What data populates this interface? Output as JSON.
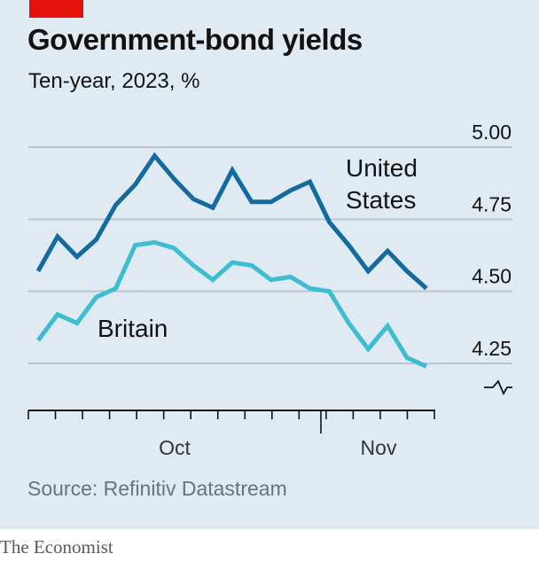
{
  "header": {
    "title": "Government-bond yields",
    "subtitle": "Ten-year, 2023, %"
  },
  "footer": {
    "source": "Source: Refinitiv Datastream",
    "brand": "The Economist"
  },
  "colors": {
    "background": "#e0eaf2",
    "accent": "#e3120b",
    "united_states": "#136a9e",
    "britain": "#3ebcd2",
    "gridline": "#b7c6d2",
    "text": "#121212"
  },
  "chart_data": {
    "type": "line",
    "y_scale": "linear",
    "ylim": [
      4.25,
      5.0
    ],
    "yticks": [
      "4.25",
      "4.50",
      "4.75",
      "5.00"
    ],
    "axis_break_below": true,
    "x_labels": [
      "Oct",
      "Nov"
    ],
    "x_tick_count": 16,
    "x_label_positions": [
      5.5,
      12.5
    ],
    "grid": true,
    "series": [
      {
        "name": "United States",
        "label_lines": [
          "United",
          "States"
        ],
        "color": "#136a9e",
        "values": [
          4.57,
          4.69,
          4.62,
          4.68,
          4.8,
          4.87,
          4.97,
          4.89,
          4.82,
          4.79,
          4.92,
          4.81,
          4.81,
          4.85,
          4.88,
          4.74,
          4.66,
          4.57,
          4.64,
          4.57,
          4.51
        ]
      },
      {
        "name": "Britain",
        "label_lines": [
          "Britain"
        ],
        "color": "#3ebcd2",
        "values": [
          4.33,
          4.42,
          4.39,
          4.48,
          4.51,
          4.66,
          4.67,
          4.65,
          4.59,
          4.54,
          4.6,
          4.59,
          4.54,
          4.55,
          4.51,
          4.5,
          4.39,
          4.3,
          4.38,
          4.27,
          4.24
        ]
      }
    ]
  }
}
